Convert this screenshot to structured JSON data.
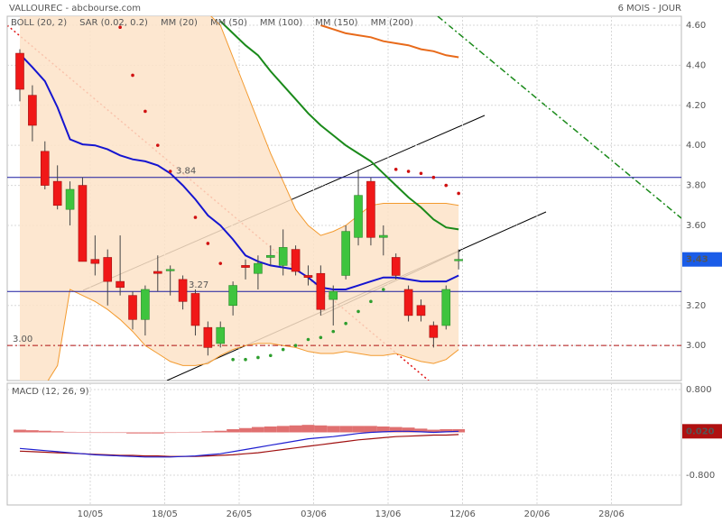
{
  "header": {
    "title": "VALLOUREC - abcbourse.com",
    "period": "6 MOIS - JOUR"
  },
  "chart_data": [
    {
      "type": "candlestick",
      "xtick_labels": [
        "10/05",
        "18/05",
        "26/05",
        "03/06",
        "13/06",
        "12/06",
        "20/06",
        "28/06"
      ],
      "ylim": [
        2.825,
        4.645
      ],
      "yticks": [
        {
          "value": 4.6,
          "label": "4.60"
        },
        {
          "value": 4.4,
          "label": "4.40"
        },
        {
          "value": 4.2,
          "label": "4.20"
        },
        {
          "value": 4.0,
          "label": "4.00"
        },
        {
          "value": 3.8,
          "label": "3.80"
        },
        {
          "value": 3.6,
          "label": "3.60"
        },
        {
          "value": 3.2,
          "label": "3.20"
        },
        {
          "value": 3.0,
          "label": "3.00"
        }
      ],
      "grid": true,
      "up_color": "#3ec43e",
      "down_color": "#f01818",
      "open": [
        4.46,
        4.25,
        3.97,
        3.82,
        3.68,
        3.8,
        3.43,
        3.44,
        3.32,
        3.25,
        3.13,
        3.37,
        3.38,
        3.33,
        3.26,
        3.09,
        3.01,
        3.2,
        3.4,
        3.36,
        3.44,
        3.4,
        3.48,
        3.35,
        3.36,
        3.23,
        3.35,
        3.54,
        3.82,
        3.54,
        3.44,
        3.28,
        3.2,
        3.1,
        3.1,
        3.43
      ],
      "close": [
        4.28,
        4.1,
        3.8,
        3.7,
        3.78,
        3.42,
        3.41,
        3.32,
        3.29,
        3.13,
        3.28,
        3.36,
        3.38,
        3.22,
        3.1,
        2.99,
        3.09,
        3.3,
        3.39,
        3.41,
        3.45,
        3.49,
        3.37,
        3.34,
        3.18,
        3.27,
        3.57,
        3.75,
        3.54,
        3.55,
        3.35,
        3.15,
        3.15,
        3.04,
        3.28,
        3.43
      ],
      "high": [
        4.48,
        4.3,
        4.02,
        3.9,
        3.82,
        3.84,
        3.55,
        3.48,
        3.55,
        3.27,
        3.3,
        3.45,
        3.4,
        3.35,
        3.28,
        3.12,
        3.12,
        3.32,
        3.43,
        3.45,
        3.5,
        3.58,
        3.5,
        3.4,
        3.4,
        3.3,
        3.6,
        3.88,
        3.84,
        3.6,
        3.46,
        3.3,
        3.23,
        3.12,
        3.3,
        3.48
      ],
      "low": [
        4.22,
        4.02,
        3.78,
        3.68,
        3.6,
        3.42,
        3.35,
        3.2,
        3.25,
        3.08,
        3.05,
        3.27,
        3.25,
        3.18,
        3.05,
        2.95,
        2.99,
        3.15,
        3.33,
        3.28,
        3.4,
        3.35,
        3.35,
        3.3,
        3.15,
        3.1,
        3.33,
        3.5,
        3.5,
        3.45,
        3.33,
        3.12,
        3.12,
        2.99,
        3.08,
        3.38
      ],
      "band": {
        "name": "BOLL (20, 2)",
        "color": "#f39a2e",
        "fill": "#fde3c8",
        "upper": [
          4.9,
          4.9,
          4.9,
          4.9,
          4.85,
          4.85,
          4.85,
          4.85,
          4.8,
          4.8,
          4.8,
          4.78,
          4.75,
          4.72,
          4.7,
          4.66,
          4.6,
          4.44,
          4.28,
          4.12,
          3.96,
          3.82,
          3.68,
          3.6,
          3.55,
          3.57,
          3.6,
          3.65,
          3.7,
          3.71,
          3.71,
          3.71,
          3.71,
          3.71,
          3.71,
          3.7
        ],
        "lower": [
          2.7,
          2.75,
          2.8,
          2.9,
          3.28,
          3.25,
          3.22,
          3.18,
          3.13,
          3.07,
          3.0,
          2.96,
          2.92,
          2.9,
          2.9,
          2.91,
          2.95,
          2.98,
          3.0,
          3.01,
          3.01,
          3.0,
          2.99,
          2.97,
          2.96,
          2.96,
          2.97,
          2.96,
          2.95,
          2.95,
          2.96,
          2.94,
          2.92,
          2.91,
          2.93,
          2.98
        ]
      },
      "sar": {
        "name": "SAR (0.02, 0.2)",
        "color": "#d01010",
        "up_color": "#2e9e2e",
        "down_values": [
          null,
          null,
          null,
          null,
          null,
          null,
          null,
          null,
          4.59,
          4.35,
          4.17,
          4.0,
          3.87,
          null,
          3.64,
          3.51,
          3.41,
          null,
          null,
          null,
          null,
          null,
          null,
          null,
          null,
          null,
          null,
          null,
          null,
          null,
          3.88,
          3.87,
          3.86,
          3.84,
          3.8,
          3.76
        ],
        "up_values": [
          null,
          null,
          null,
          null,
          null,
          null,
          null,
          null,
          null,
          null,
          null,
          null,
          null,
          null,
          null,
          null,
          null,
          2.93,
          2.93,
          2.94,
          2.95,
          2.98,
          3.0,
          3.03,
          3.04,
          3.07,
          3.11,
          3.17,
          3.22,
          3.28,
          null,
          null,
          null,
          null,
          null,
          null
        ]
      },
      "series": [
        {
          "name": "MM (20)",
          "color": "#1515d0",
          "values": [
            4.456,
            4.39,
            4.32,
            4.19,
            4.03,
            4.005,
            4.0,
            3.98,
            3.95,
            3.93,
            3.92,
            3.9,
            3.86,
            3.8,
            3.73,
            3.65,
            3.6,
            3.53,
            3.45,
            3.42,
            3.4,
            3.39,
            3.38,
            3.34,
            3.29,
            3.28,
            3.28,
            3.3,
            3.32,
            3.34,
            3.34,
            3.33,
            3.32,
            3.32,
            3.32,
            3.35
          ]
        },
        {
          "name": "MM (50)",
          "color": "#1a8a1a",
          "values": [
            null,
            null,
            null,
            null,
            null,
            null,
            null,
            null,
            null,
            null,
            null,
            null,
            null,
            null,
            null,
            null,
            4.62,
            4.56,
            4.5,
            4.45,
            4.37,
            4.3,
            4.23,
            4.16,
            4.1,
            4.05,
            4.0,
            3.96,
            3.92,
            3.86,
            3.8,
            3.74,
            3.69,
            3.63,
            3.59,
            3.58
          ]
        },
        {
          "name": "MM (100)",
          "color": "#e86a1a",
          "values": [
            null,
            null,
            null,
            null,
            null,
            null,
            null,
            null,
            null,
            null,
            null,
            null,
            null,
            null,
            null,
            null,
            null,
            null,
            null,
            null,
            null,
            null,
            null,
            null,
            4.6,
            4.58,
            4.56,
            4.55,
            4.54,
            4.52,
            4.51,
            4.5,
            4.48,
            4.47,
            4.45,
            4.44
          ]
        },
        {
          "name": "MM (150)",
          "color": "#a00000"
        },
        {
          "name": "MM (200)",
          "color": "#e000e0"
        }
      ],
      "levels": [
        {
          "value": 3.84,
          "label": "3.84",
          "color": "#1a1aa0"
        },
        {
          "value": 3.27,
          "label": "3.27",
          "color": "#1a1aa0"
        },
        {
          "value": 3,
          "label": "3.00",
          "color": "#b01010"
        }
      ],
      "last_price": {
        "value": 3.43,
        "label": "3.43",
        "color": "#1a5ce8"
      }
    },
    {
      "type": "macd",
      "title": "MACD (12, 26, 9)",
      "ylim": [
        -1.356,
        0.918
      ],
      "yticks": [
        {
          "value": 0.8,
          "label": "0.800"
        },
        {
          "value": -0.8,
          "label": "-0.800"
        }
      ],
      "macd": {
        "color": "#2020d0",
        "values": [
          -0.3,
          -0.32,
          -0.34,
          -0.36,
          -0.38,
          -0.4,
          -0.42,
          -0.43,
          -0.44,
          -0.45,
          -0.46,
          -0.46,
          -0.46,
          -0.45,
          -0.44,
          -0.42,
          -0.4,
          -0.36,
          -0.32,
          -0.28,
          -0.24,
          -0.2,
          -0.16,
          -0.12,
          -0.1,
          -0.08,
          -0.05,
          -0.02,
          0.0,
          0.01,
          0.02,
          0.02,
          0.01,
          0.0,
          0.01,
          0.02
        ]
      },
      "signal": {
        "color": "#a01010",
        "values": [
          -0.35,
          -0.36,
          -0.37,
          -0.38,
          -0.39,
          -0.4,
          -0.41,
          -0.42,
          -0.43,
          -0.43,
          -0.44,
          -0.44,
          -0.45,
          -0.45,
          -0.45,
          -0.44,
          -0.43,
          -0.42,
          -0.4,
          -0.38,
          -0.35,
          -0.32,
          -0.29,
          -0.26,
          -0.23,
          -0.2,
          -0.17,
          -0.14,
          -0.12,
          -0.1,
          -0.08,
          -0.07,
          -0.06,
          -0.05,
          -0.05,
          -0.04
        ]
      },
      "histogram": {
        "color": "#e07070",
        "values": [
          0.05,
          0.04,
          0.03,
          0.02,
          0.01,
          0,
          -0.01,
          -0.01,
          -0.01,
          -0.02,
          -0.02,
          -0.02,
          -0.01,
          0,
          0.01,
          0.02,
          0.03,
          0.06,
          0.08,
          0.1,
          0.11,
          0.12,
          0.13,
          0.14,
          0.13,
          0.12,
          0.12,
          0.12,
          0.12,
          0.11,
          0.1,
          0.09,
          0.07,
          0.05,
          0.06,
          0.06
        ]
      },
      "last_value": {
        "value": 0.02,
        "label": "0.020",
        "color": "#b01010"
      }
    }
  ]
}
